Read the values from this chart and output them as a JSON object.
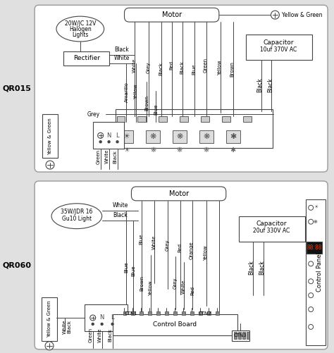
{
  "bg_color": "#e0e0e0",
  "line_color": "#444444",
  "fig_width": 4.74,
  "fig_height": 5.01,
  "dpi": 100,
  "qr015_label": "QR015",
  "qr060_label": "QR060",
  "motor_label": "Motor",
  "rectifier_label": "Rectifier",
  "light1_line1": "20W/JC 12V",
  "light1_line2": "Halogen",
  "light1_line3": "Lights",
  "light2_line1": "35W/JDR 16",
  "light2_line2": "Gu10 Light",
  "cap1_line1": "Capacitor",
  "cap1_line2": "10uf 370V AC",
  "cap2_line1": "Capacitor",
  "cap2_line2": "20uf 330V AC",
  "ground_label": "Yellow & Green",
  "control_board_label": "Control Board",
  "control_panel_label": "Control Panel",
  "display_text": "88:88"
}
